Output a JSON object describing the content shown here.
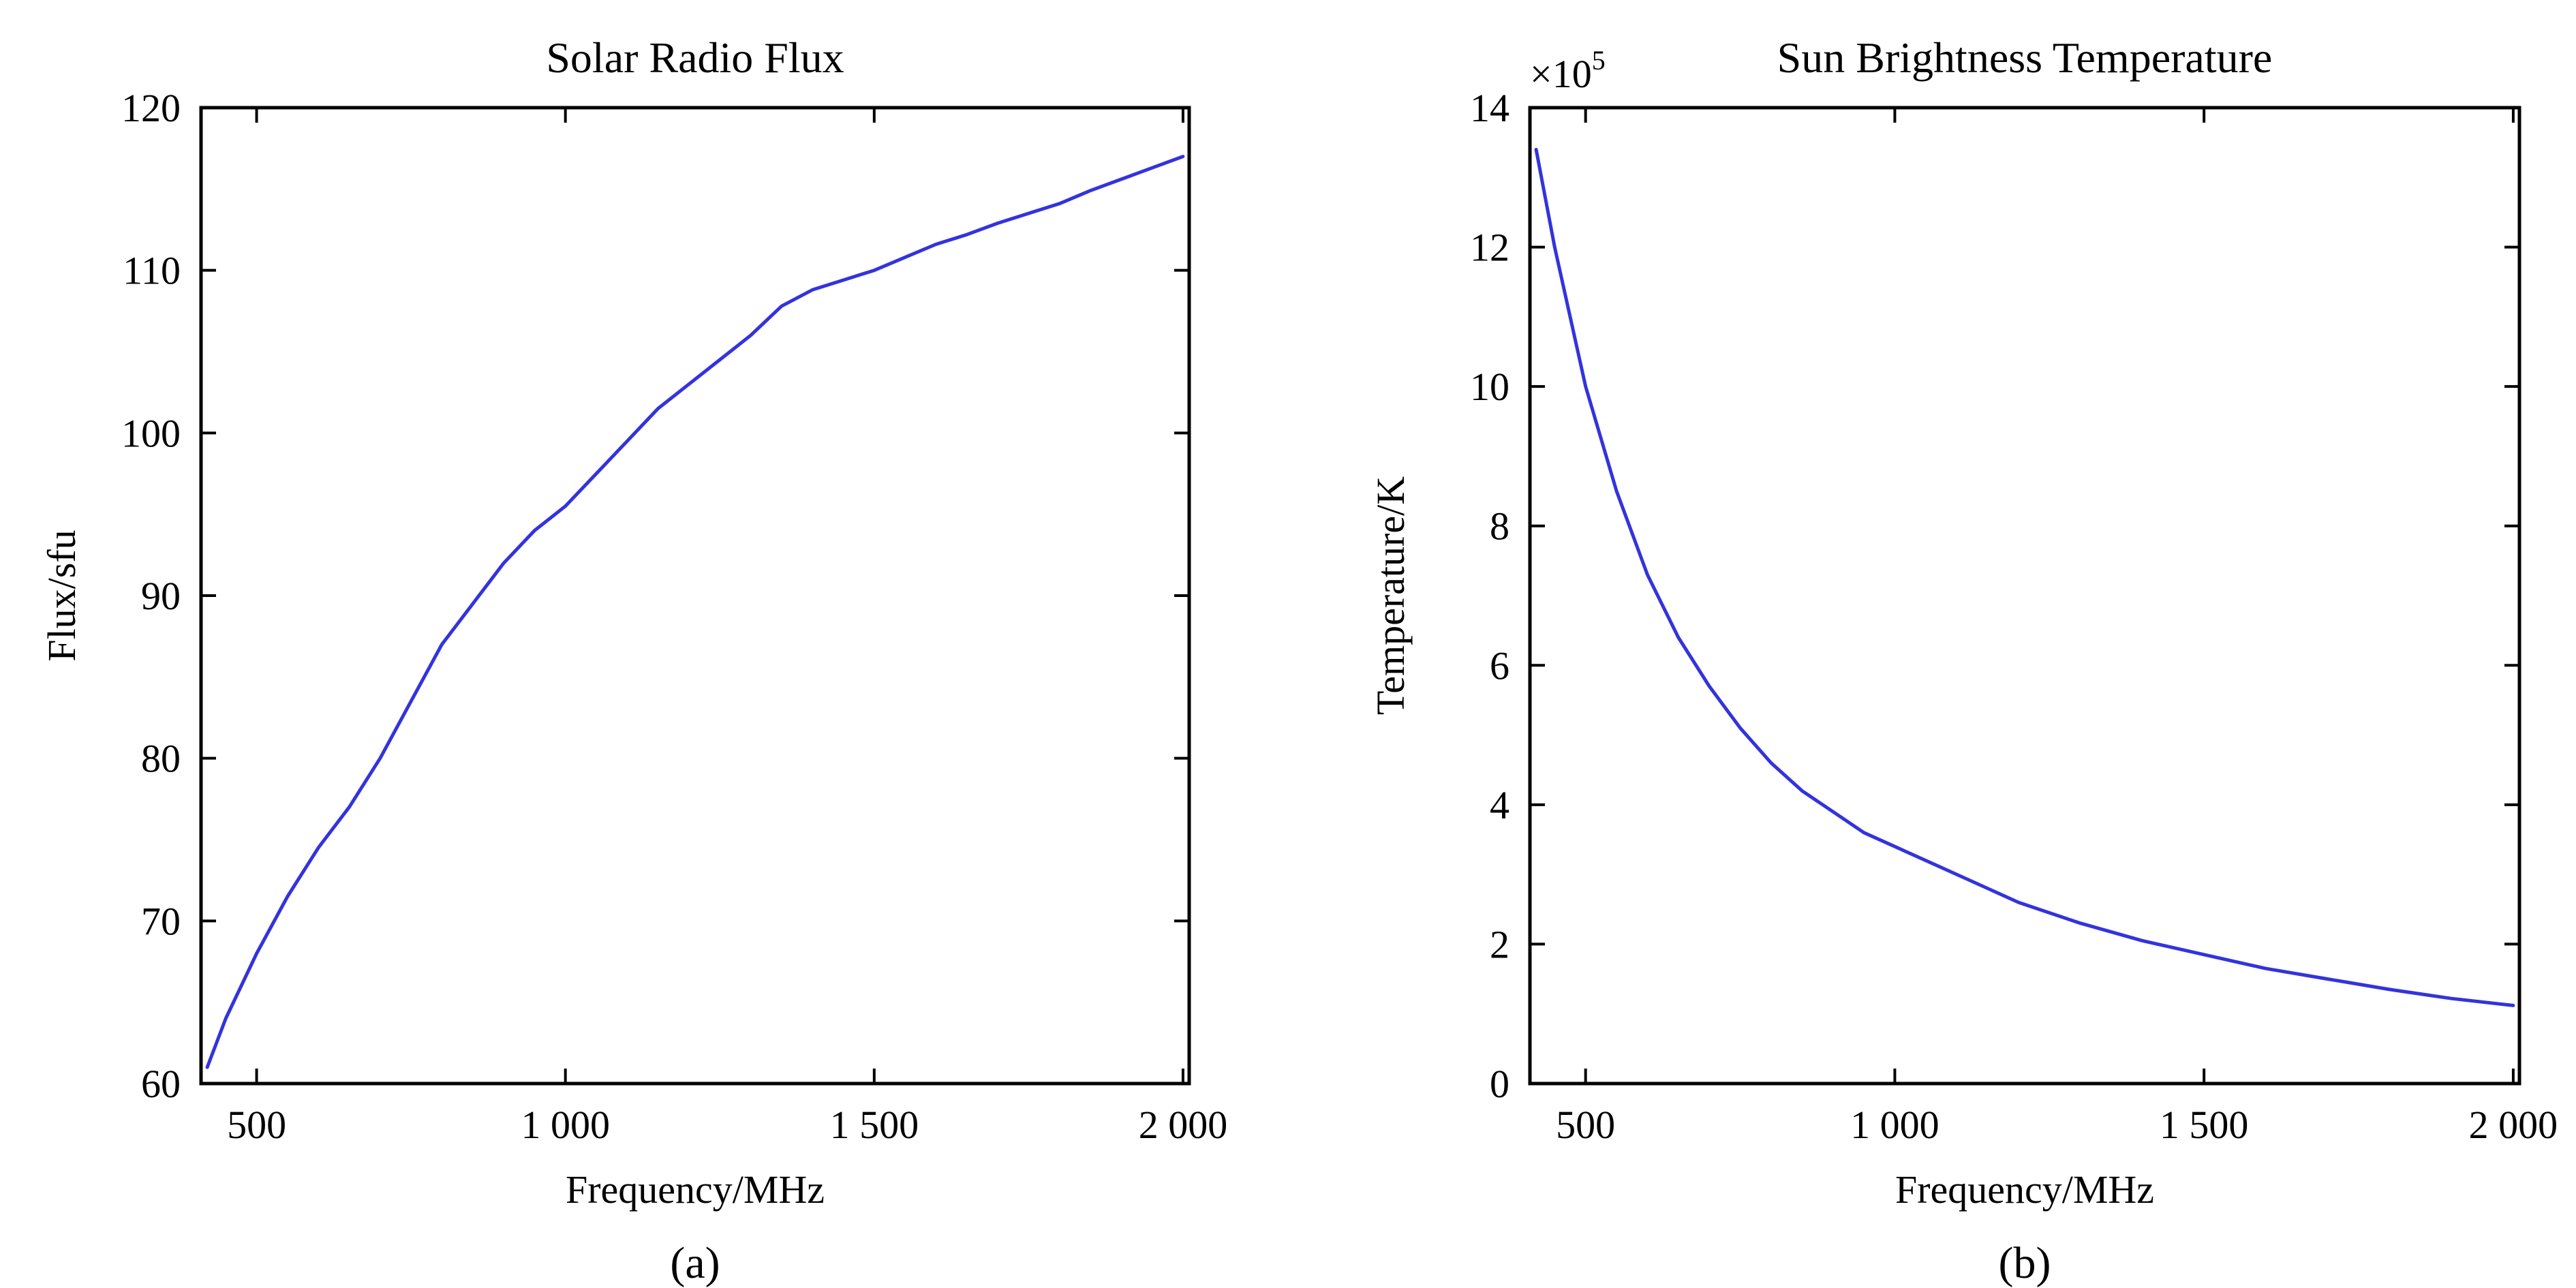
{
  "colors": {
    "line": "#3333dd",
    "axis": "#000000",
    "background": "#ffffff"
  },
  "chart_data": [
    {
      "type": "line",
      "panel_label": "(a)",
      "title": "Solar Radio Flux",
      "xlabel": "Frequency/MHz",
      "ylabel": "Flux/sfu",
      "y_multiplier": "",
      "xlim": [
        410,
        2010
      ],
      "ylim": [
        60,
        120
      ],
      "xticks": [
        500,
        1000,
        1500,
        2000
      ],
      "xtick_labels": [
        "500",
        "1 000",
        "1 500",
        "2 000"
      ],
      "yticks": [
        60,
        70,
        80,
        90,
        100,
        110,
        120
      ],
      "ytick_labels": [
        "60",
        "70",
        "80",
        "90",
        "100",
        "110",
        "120"
      ],
      "grid": false,
      "series": [
        {
          "x": [
            420,
            450,
            500,
            550,
            600,
            650,
            700,
            750,
            800,
            850,
            900,
            950,
            1000,
            1050,
            1100,
            1150,
            1200,
            1250,
            1300,
            1350,
            1400,
            1450,
            1500,
            1550,
            1600,
            1650,
            1700,
            1750,
            1800,
            1850,
            1900,
            1950,
            2000
          ],
          "y": [
            61.0,
            64.0,
            68.0,
            71.5,
            74.5,
            77.0,
            80.0,
            83.5,
            87.0,
            89.5,
            92.0,
            94.0,
            95.5,
            97.5,
            99.5,
            101.5,
            103.0,
            104.5,
            106.0,
            107.8,
            108.8,
            109.4,
            110.0,
            110.8,
            111.6,
            112.2,
            112.9,
            113.5,
            114.1,
            114.9,
            115.6,
            116.3,
            117.0
          ]
        }
      ]
    },
    {
      "type": "line",
      "panel_label": "(b)",
      "title": "Sun Brightness Temperature",
      "xlabel": "Frequency/MHz",
      "ylabel": "Temperature/K",
      "y_multiplier": "×10",
      "y_multiplier_exp": "5",
      "xlim": [
        410,
        2010
      ],
      "ylim": [
        0,
        14
      ],
      "xticks": [
        500,
        1000,
        1500,
        2000
      ],
      "xtick_labels": [
        "500",
        "1 000",
        "1 500",
        "2 000"
      ],
      "yticks": [
        0,
        2,
        4,
        6,
        8,
        10,
        12,
        14
      ],
      "ytick_labels": [
        "0",
        "2",
        "4",
        "6",
        "8",
        "10",
        "12",
        "14"
      ],
      "grid": false,
      "series": [
        {
          "x": [
            420,
            450,
            500,
            550,
            600,
            650,
            700,
            750,
            800,
            850,
            900,
            950,
            1000,
            1100,
            1200,
            1300,
            1400,
            1500,
            1600,
            1700,
            1800,
            1900,
            2000
          ],
          "y": [
            13.4,
            12.0,
            10.0,
            8.5,
            7.3,
            6.4,
            5.7,
            5.1,
            4.6,
            4.2,
            3.9,
            3.6,
            3.4,
            3.0,
            2.6,
            2.3,
            2.05,
            1.85,
            1.65,
            1.5,
            1.35,
            1.22,
            1.12
          ]
        }
      ]
    }
  ]
}
